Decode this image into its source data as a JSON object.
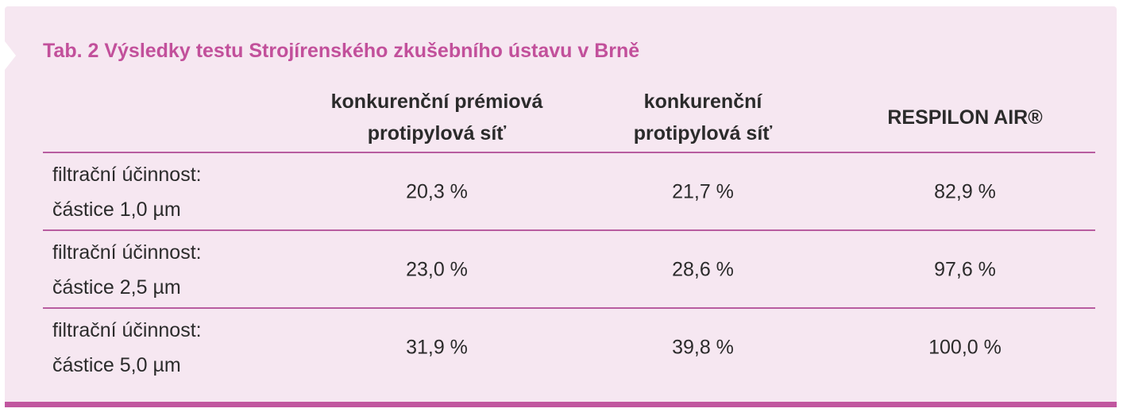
{
  "title": "Tab. 2 Výsledky testu Strojírenského zkušebního ústavu v Brně",
  "columns": [
    {
      "line1": "konkurenční prémiová",
      "line2": "protipylová síť"
    },
    {
      "line1": "konkurenční",
      "line2": "protipylová síť"
    },
    {
      "line1": "RESPILON AIR®",
      "line2": ""
    }
  ],
  "rows": [
    {
      "label_line1": "filtrační účinnost:",
      "label_line2": "částice 1,0 µm",
      "values": [
        "20,3 %",
        "21,7 %",
        "82,9 %"
      ]
    },
    {
      "label_line1": "filtrační účinnost:",
      "label_line2": "částice 2,5 µm",
      "values": [
        "23,0 %",
        "28,6 %",
        "97,6 %"
      ]
    },
    {
      "label_line1": "filtrační účinnost:",
      "label_line2": "částice 5,0 µm",
      "values": [
        "31,9 %",
        "39,8 %",
        "100,0 %"
      ]
    }
  ],
  "colors": {
    "accent": "#c2509b",
    "panel": "#f6e7f1",
    "rule": "#b85da0",
    "text": "#2b2b2b"
  }
}
